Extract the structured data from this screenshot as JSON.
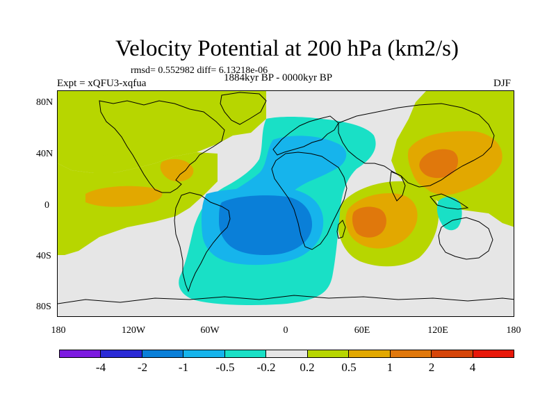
{
  "title": "Velocity Potential at 200 hPa (km2/s)",
  "stats": "rmsd= 0.552982 diff= 6.13218e-06",
  "subtitle": "1884kyr BP - 0000kyr BP",
  "experiment": "Expt = xQFU3-xqfua",
  "season": "DJF",
  "map": {
    "type": "filled-contour-map",
    "projection": "cylindrical-equidistant",
    "y_axis_labels": [
      "80N",
      "40N",
      "0",
      "40S",
      "80S"
    ],
    "x_axis_labels": [
      "180",
      "120W",
      "60W",
      "0",
      "60E",
      "120E",
      "180"
    ],
    "regions": [
      {
        "name": "north-america-high",
        "color": "#b7d600"
      },
      {
        "name": "north-pacific-ridge",
        "color": "#b7d600"
      },
      {
        "name": "tropical-east-pacific",
        "color": "#b7d600"
      },
      {
        "name": "east-pacific-orange",
        "color": "#e2a800"
      },
      {
        "name": "caribbean-orange",
        "color": "#e2a800"
      },
      {
        "name": "asia-pacific-high",
        "color": "#b7d600"
      },
      {
        "name": "east-asia-orange",
        "color": "#e2a800"
      },
      {
        "name": "east-asia-core",
        "color": "#e0780c"
      },
      {
        "name": "indian-ocean-high",
        "color": "#b7d600"
      },
      {
        "name": "indian-ocean-orange",
        "color": "#e2a800"
      },
      {
        "name": "indian-ocean-core",
        "color": "#e0780c"
      },
      {
        "name": "atlantic-low-outer",
        "color": "#19e0c6"
      },
      {
        "name": "atlantic-low-mid",
        "color": "#16b4ec"
      },
      {
        "name": "atlantic-low-inner",
        "color": "#0a7fd8"
      },
      {
        "name": "maritime-continent-low",
        "color": "#19e0c6"
      }
    ]
  },
  "colorbar": {
    "labels": [
      "-4",
      "-2",
      "-1",
      "-0.5",
      "-0.2",
      "0.2",
      "0.5",
      "1",
      "2",
      "4"
    ],
    "colors": [
      "#7c1ae0",
      "#2a2ad6",
      "#0a7fd8",
      "#16b4ec",
      "#19e0c6",
      "#e6e6e6",
      "#b7d600",
      "#e2a800",
      "#e0780c",
      "#d6460a",
      "#e8180a"
    ]
  }
}
